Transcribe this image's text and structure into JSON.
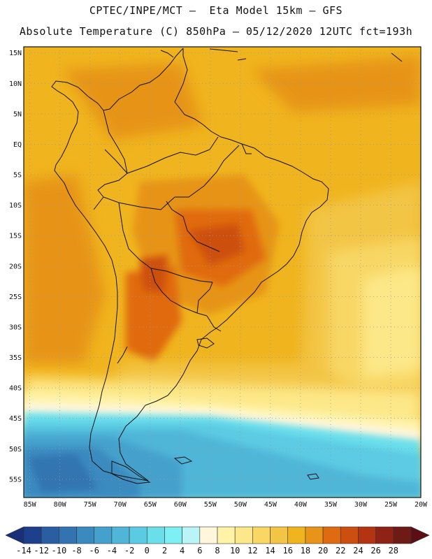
{
  "header": {
    "line1": "CPTEC/INPE/MCT —  Eta Model 15km — GFS",
    "line2": "Absolute Temperature (C) 850hPa — 05/12/2020 12UTC fct=193h"
  },
  "map": {
    "lat_labels": [
      "15N",
      "10N",
      "5N",
      "EQ",
      "5S",
      "10S",
      "15S",
      "20S",
      "25S",
      "30S",
      "35S",
      "40S",
      "45S",
      "50S",
      "55S"
    ],
    "lon_labels": [
      "85W",
      "80W",
      "75W",
      "70W",
      "65W",
      "60W",
      "55W",
      "50W",
      "45W",
      "40W",
      "35W",
      "30W",
      "25W",
      "20W"
    ],
    "lat_range": [
      -58,
      16
    ],
    "lon_range": [
      -86,
      -20
    ]
  },
  "colorbar": {
    "labels": [
      "-14",
      "-12",
      "-10",
      "-8",
      "-6",
      "-4",
      "-2",
      "0",
      "2",
      "4",
      "6",
      "8",
      "10",
      "12",
      "14",
      "16",
      "18",
      "20",
      "22",
      "24",
      "26",
      "28"
    ],
    "colors": [
      "#1e3f8c",
      "#2a5ea3",
      "#3274b1",
      "#3a8ac0",
      "#44a1cc",
      "#4fb6d8",
      "#5bcbe3",
      "#6adfec",
      "#7eeff2",
      "#b9f4f7",
      "#fff6dc",
      "#fff3a8",
      "#fde889",
      "#f8d765",
      "#f3c545",
      "#f0b41e",
      "#e79419",
      "#e06a0f",
      "#cd4f10",
      "#b43412",
      "#8e2214",
      "#6e1b15"
    ],
    "under_color": "#1a2f7a",
    "over_color": "#5b0f14"
  }
}
